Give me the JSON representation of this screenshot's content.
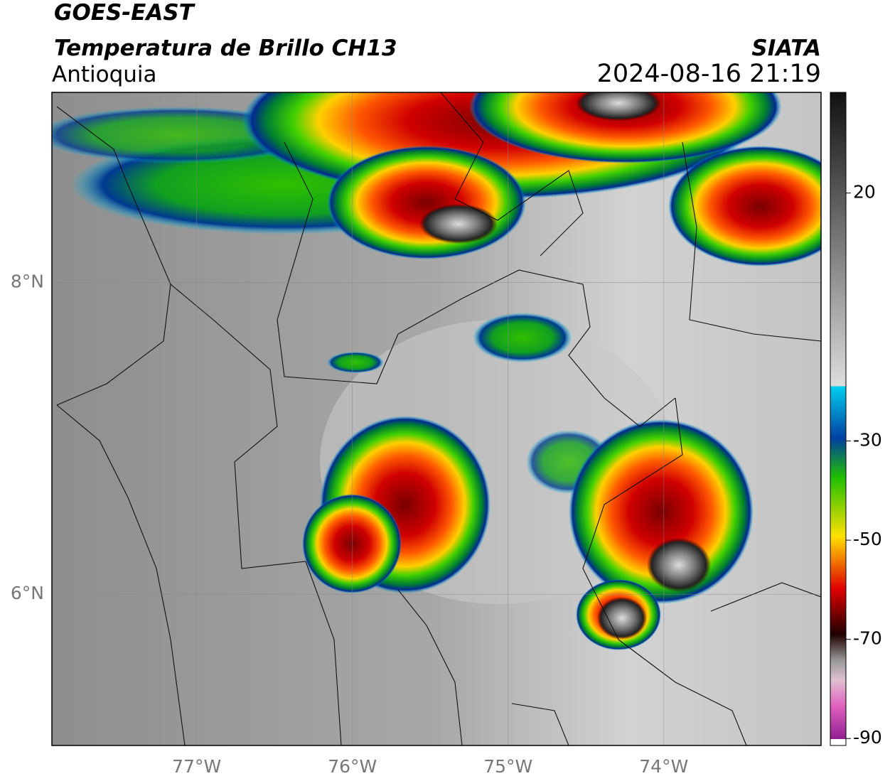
{
  "header": {
    "title": "GOES-EAST",
    "subtitle": "Temperatura de Brillo CH13",
    "region": "Antioquia",
    "source": "SIATA",
    "datetime": "2024-08-16 21:19"
  },
  "map": {
    "lonlim": [
      -77.93,
      -72.99
    ],
    "latlim": [
      5.03,
      9.22
    ],
    "lon_ticks": [
      {
        "value": -77,
        "label": "77°W"
      },
      {
        "value": -76,
        "label": "76°W"
      },
      {
        "value": -75,
        "label": "75°W"
      },
      {
        "value": -74,
        "label": "74°W"
      }
    ],
    "lat_ticks": [
      {
        "value": 8,
        "label": "8°N"
      },
      {
        "value": 6,
        "label": "6°N"
      }
    ]
  },
  "colorbar": {
    "lim": [
      -91.4,
      40.3
    ],
    "ticks": [
      20,
      -30,
      -50,
      -70,
      -90
    ]
  }
}
